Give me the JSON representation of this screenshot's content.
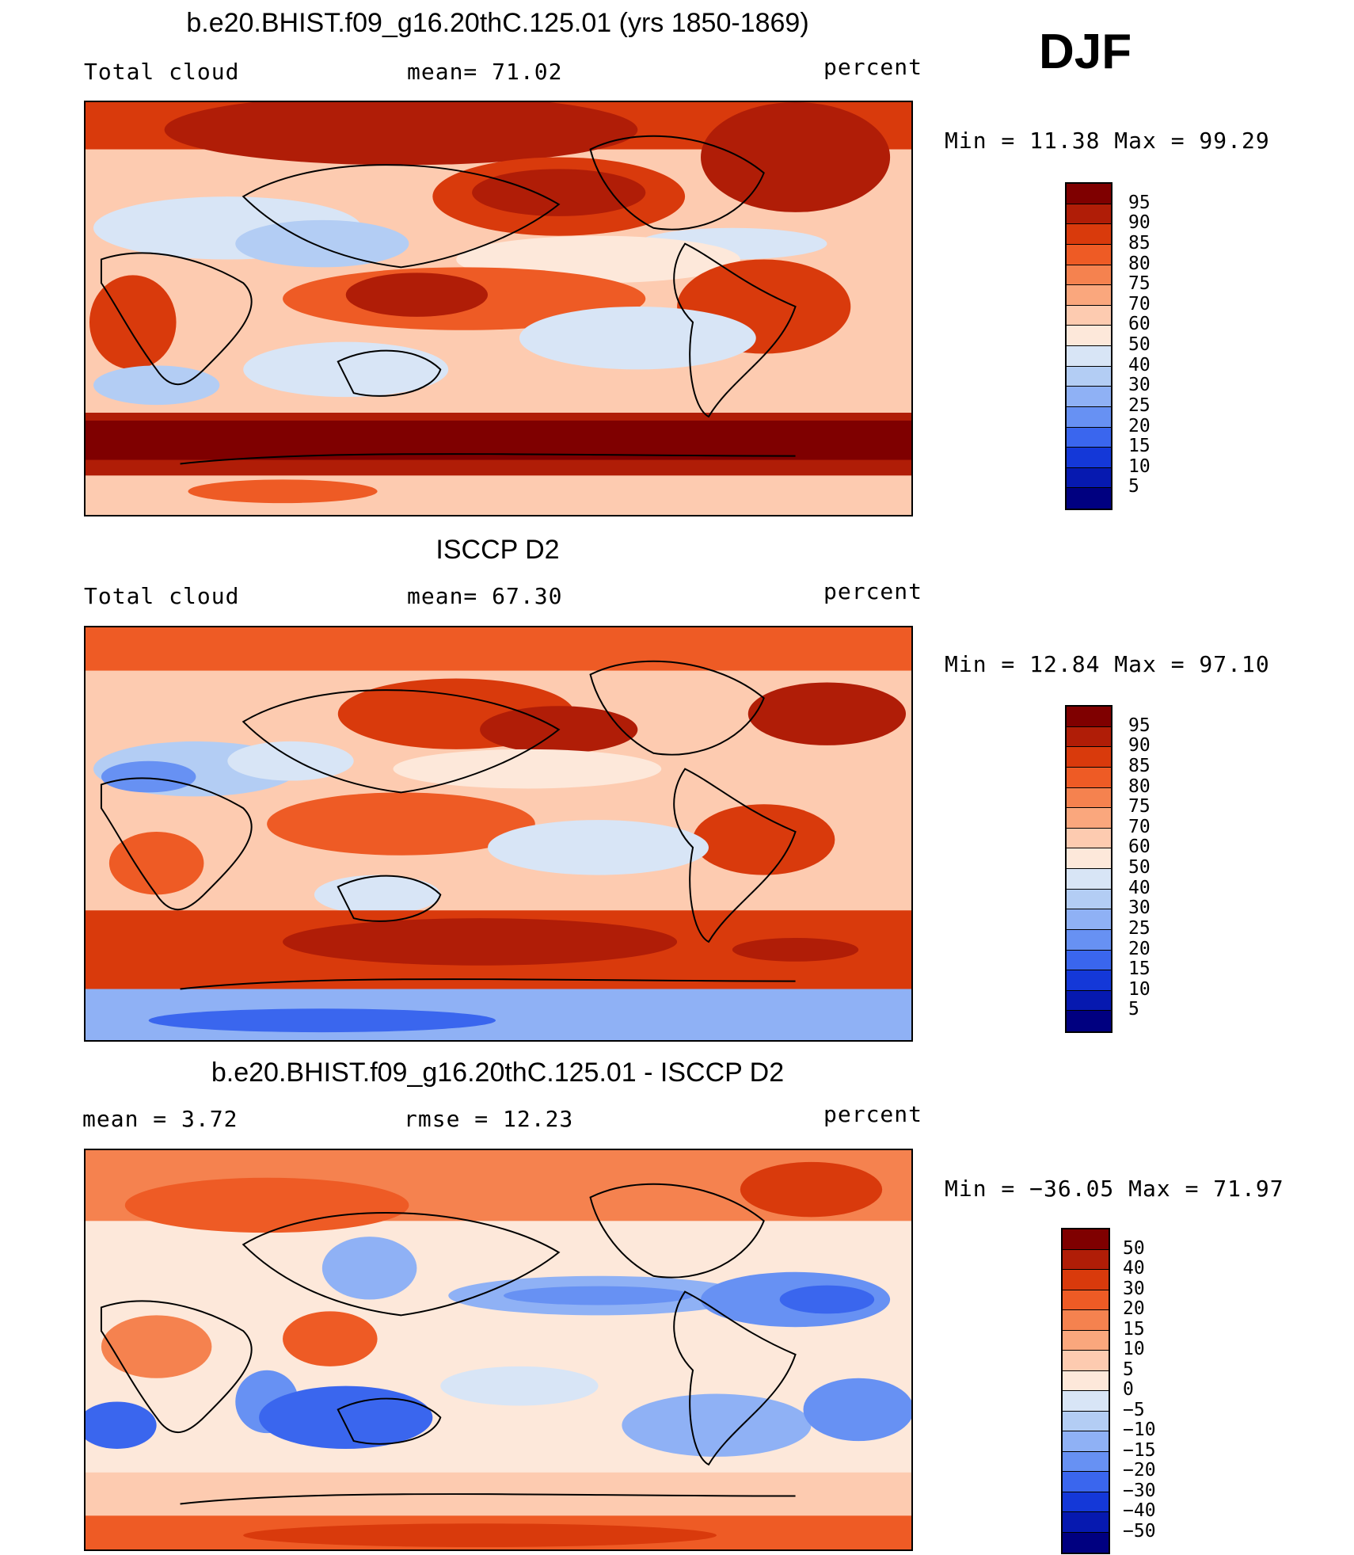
{
  "season": "DJF",
  "panels": [
    {
      "title": "b.e20.BHIST.f09_g16.20thC.125.01 (yrs 1850-1869)",
      "left_label": "Total cloud",
      "center_label": "mean=   71.02",
      "right_label": "percent",
      "minmax": "Min =   11.38 Max =   99.29",
      "colorbar": {
        "labels": [
          "95",
          "90",
          "85",
          "80",
          "75",
          "70",
          "60",
          "50",
          "40",
          "30",
          "25",
          "20",
          "15",
          "10",
          "5"
        ],
        "colors": [
          "#7f0000",
          "#b01d07",
          "#d93a0c",
          "#ee5b25",
          "#f5824f",
          "#faa77d",
          "#fdcbb0",
          "#fde8da",
          "#d8e5f6",
          "#b3cdf4",
          "#8fb1f5",
          "#6791f3",
          "#3a66ee",
          "#1438d8",
          "#0619b0",
          "#000080"
        ]
      }
    },
    {
      "title": "ISCCP D2",
      "left_label": "Total cloud",
      "center_label": "mean=   67.30",
      "right_label": "percent",
      "minmax": "Min =   12.84 Max =   97.10",
      "colorbar": {
        "labels": [
          "95",
          "90",
          "85",
          "80",
          "75",
          "70",
          "60",
          "50",
          "40",
          "30",
          "25",
          "20",
          "15",
          "10",
          "5"
        ],
        "colors": [
          "#7f0000",
          "#b01d07",
          "#d93a0c",
          "#ee5b25",
          "#f5824f",
          "#faa77d",
          "#fdcbb0",
          "#fde8da",
          "#d8e5f6",
          "#b3cdf4",
          "#8fb1f5",
          "#6791f3",
          "#3a66ee",
          "#1438d8",
          "#0619b0",
          "#000080"
        ]
      }
    },
    {
      "title": "b.e20.BHIST.f09_g16.20thC.125.01 - ISCCP D2",
      "left_label": "mean =    3.72",
      "center_label": "rmse =   12.23",
      "right_label": "percent",
      "minmax": "Min = −36.05 Max =   71.97",
      "colorbar": {
        "labels": [
          "50",
          "40",
          "30",
          "20",
          "15",
          "10",
          "5",
          "0",
          "−5",
          "−10",
          "−15",
          "−20",
          "−30",
          "−40",
          "−50"
        ],
        "colors": [
          "#7f0000",
          "#b01d07",
          "#d93a0c",
          "#ee5b25",
          "#f5824f",
          "#faa77d",
          "#fdcbb0",
          "#fde8da",
          "#d8e5f6",
          "#b3cdf4",
          "#8fb1f5",
          "#6791f3",
          "#3a66ee",
          "#1438d8",
          "#0619b0",
          "#000080"
        ]
      }
    }
  ]
}
